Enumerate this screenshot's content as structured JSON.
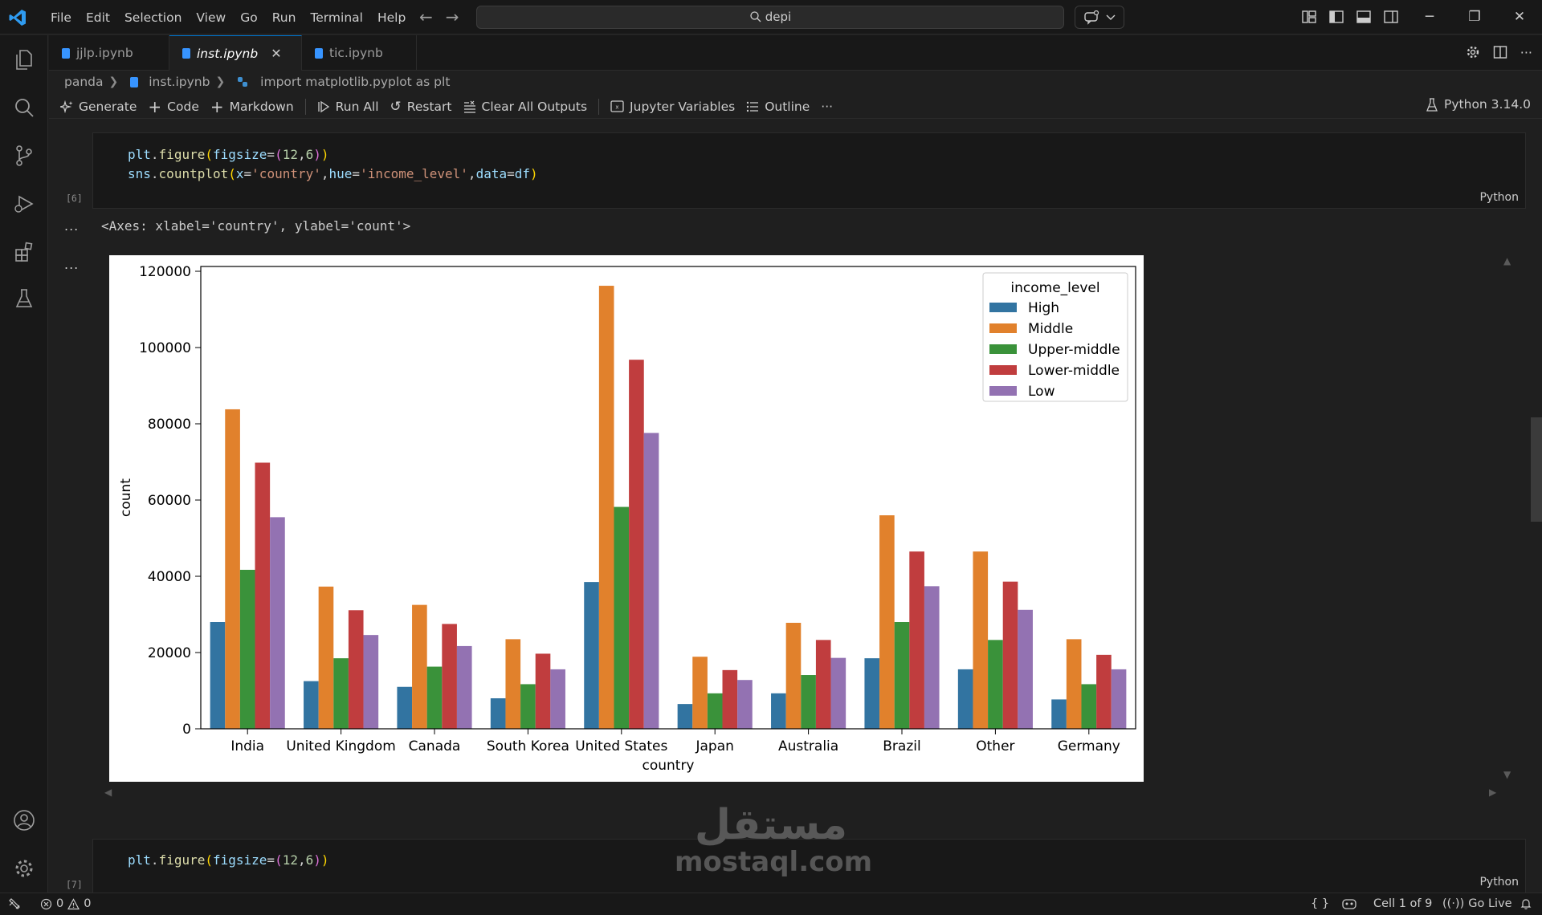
{
  "menu": [
    "File",
    "Edit",
    "Selection",
    "View",
    "Go",
    "Run",
    "Terminal",
    "Help"
  ],
  "search": {
    "text": "depi"
  },
  "tabs": [
    {
      "label": "jjlp.ipynb",
      "active": false
    },
    {
      "label": "inst.ipynb",
      "active": true
    },
    {
      "label": "tic.ipynb",
      "active": false
    }
  ],
  "breadcrumb": {
    "folder": "panda",
    "file": "inst.ipynb",
    "symbol": "import matplotlib.pyplot as plt"
  },
  "toolbar": {
    "generate": "Generate",
    "code": "Code",
    "markdown": "Markdown",
    "run_all": "Run All",
    "restart": "Restart",
    "clear_outputs": "Clear All Outputs",
    "variables": "Jupyter Variables",
    "outline": "Outline",
    "more": "···",
    "kernel": "Python 3.14.0"
  },
  "cell1": {
    "exec": "[6]",
    "lang": "Python",
    "line1": {
      "a": "plt",
      "b": ".",
      "c": "figure",
      "d": "(",
      "e": "figsize",
      "f": "=",
      "g": "(",
      "h": "12",
      "i": ",",
      "j": "6",
      "k": ")",
      "l": ")"
    },
    "line2": {
      "a": "sns",
      "b": ".",
      "c": "countplot",
      "d": "(",
      "e": "x",
      "f": "=",
      "g": "'country'",
      "h": ",",
      "i": "hue",
      "j": "=",
      "k": "'income_level'",
      "l": ",",
      "m": "data",
      "n": "=",
      "o": "df",
      "p": ")"
    }
  },
  "output": {
    "dots": "...",
    "text": "<Axes: xlabel='country', ylabel='count'>"
  },
  "cell2": {
    "exec": "[7]",
    "lang": "Python",
    "line1": {
      "a": "plt",
      "b": ".",
      "c": "figure",
      "d": "(",
      "e": "figsize",
      "f": "=",
      "g": "(",
      "h": "12",
      "i": ",",
      "j": "6",
      "k": ")",
      "l": ")"
    }
  },
  "watermark": {
    "arabic": "مستقل",
    "latin": "mostaql.com"
  },
  "status": {
    "errors": "0",
    "warnings": "0",
    "braces": "{ }",
    "cell": "Cell 1 of 9",
    "golive": "Go Live"
  },
  "colors": {
    "High": "#3274a1",
    "Middle": "#e1812c",
    "Upper-middle": "#3a923a",
    "Lower-middle": "#c03d3e",
    "Low": "#9372b2"
  },
  "chart_data": {
    "type": "bar",
    "xlabel": "country",
    "ylabel": "count",
    "ylim": [
      0,
      120000
    ],
    "yticks": [
      0,
      20000,
      40000,
      60000,
      80000,
      100000,
      120000
    ],
    "legend_title": "income_level",
    "legend_position": "top-right",
    "grid": false,
    "categories": [
      "India",
      "United Kingdom",
      "Canada",
      "South Korea",
      "United States",
      "Japan",
      "Australia",
      "Brazil",
      "Other",
      "Germany"
    ],
    "series": [
      {
        "name": "High",
        "values": [
          28000,
          12500,
          11000,
          8000,
          38500,
          6500,
          9300,
          18500,
          15600,
          7700
        ]
      },
      {
        "name": "Middle",
        "values": [
          83800,
          37300,
          32500,
          23500,
          116200,
          18900,
          27800,
          56000,
          46500,
          23500
        ]
      },
      {
        "name": "Upper-middle",
        "values": [
          41700,
          18500,
          16300,
          11700,
          58200,
          9300,
          14100,
          28000,
          23300,
          11700
        ]
      },
      {
        "name": "Lower-middle",
        "values": [
          69800,
          31100,
          27500,
          19700,
          96800,
          15400,
          23300,
          46500,
          38600,
          19400
        ]
      },
      {
        "name": "Low",
        "values": [
          55500,
          24600,
          21700,
          15600,
          77600,
          12800,
          18600,
          37400,
          31200,
          15600
        ]
      }
    ]
  }
}
